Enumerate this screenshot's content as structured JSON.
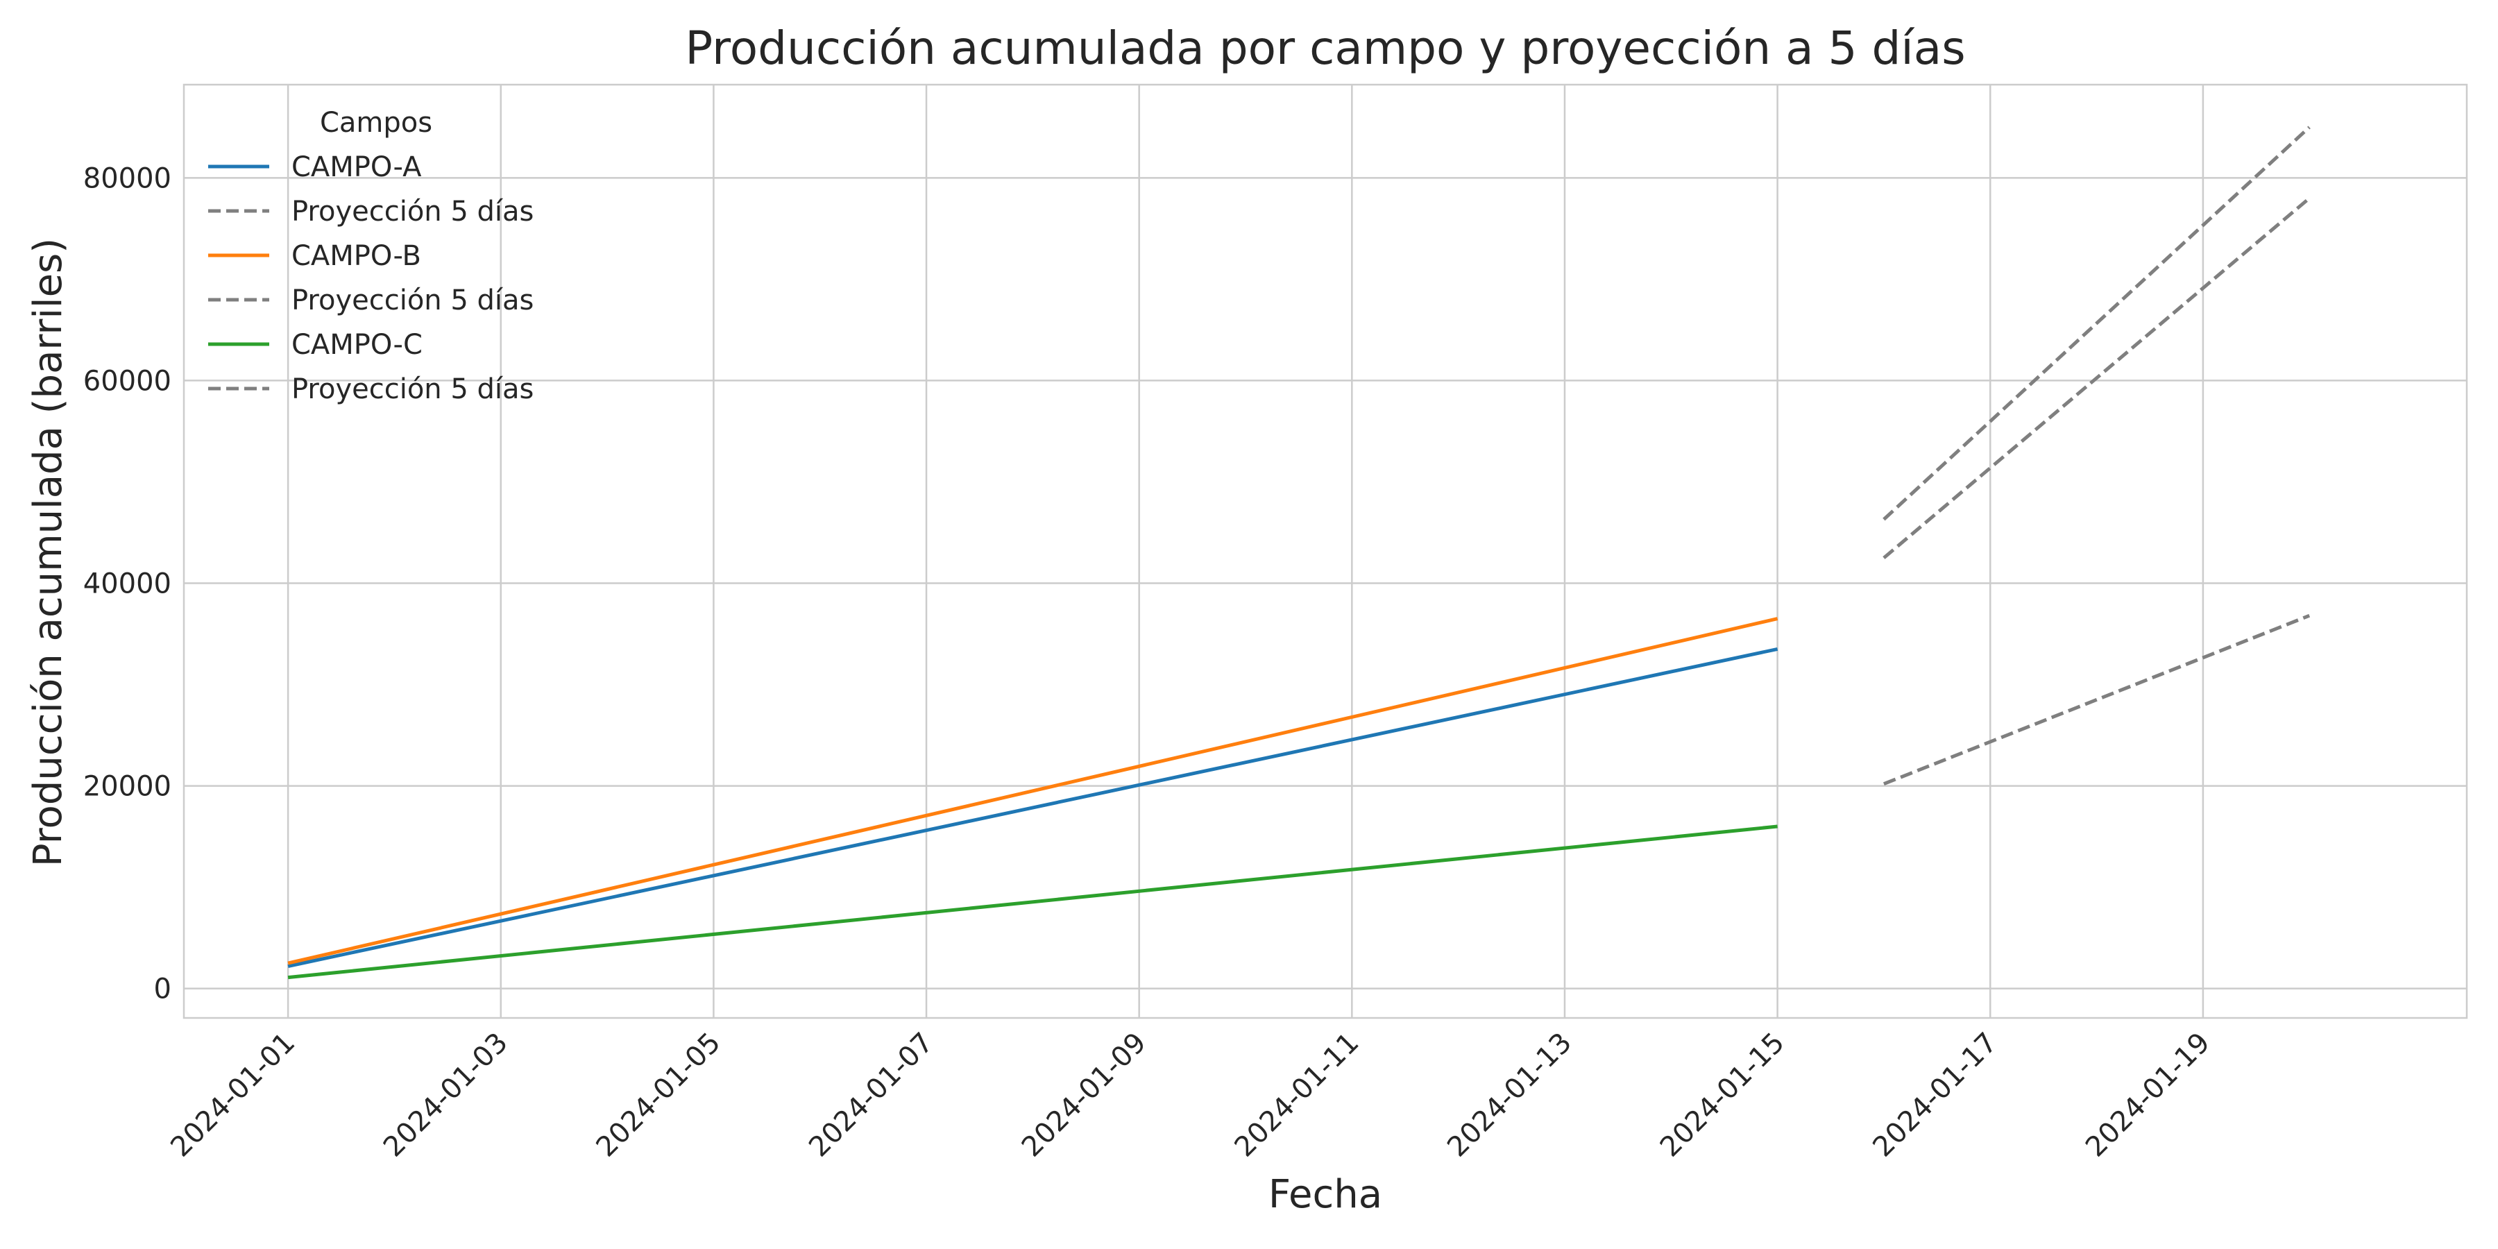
{
  "chart_data": {
    "type": "line",
    "title": "Producción acumulada por campo y proyección a 5 días",
    "xlabel": "Fecha",
    "ylabel": "Producción acumulada (barriles)",
    "x_tick_labels": [
      "2024-01-01",
      "2024-01-03",
      "2024-01-05",
      "2024-01-07",
      "2024-01-09",
      "2024-01-11",
      "2024-01-13",
      "2024-01-15",
      "2024-01-17",
      "2024-01-19"
    ],
    "y_ticks": [
      0,
      20000,
      40000,
      60000,
      80000
    ],
    "xlim": [
      "2023-12-31T00:30",
      "2024-01-21T11:30"
    ],
    "ylim": [
      -2900,
      89200
    ],
    "grid": true,
    "legend": {
      "title": "Campos",
      "placement": "top-left"
    },
    "series": [
      {
        "name": "CAMPO-A",
        "color": "#1f77b4",
        "style": "solid",
        "x": [
          "2024-01-01",
          "2024-01-15"
        ],
        "y": [
          2200,
          33500
        ]
      },
      {
        "name": "Proyección 5 días",
        "color": "#7f7f7f",
        "style": "dashed",
        "x": [
          "2024-01-16",
          "2024-01-20"
        ],
        "y": [
          42500,
          78000
        ]
      },
      {
        "name": "CAMPO-B",
        "color": "#ff7f0e",
        "style": "solid",
        "x": [
          "2024-01-01",
          "2024-01-15"
        ],
        "y": [
          2500,
          36500
        ]
      },
      {
        "name": "Proyección 5 días",
        "color": "#7f7f7f",
        "style": "dashed",
        "x": [
          "2024-01-16",
          "2024-01-20"
        ],
        "y": [
          46300,
          85000
        ]
      },
      {
        "name": "CAMPO-C",
        "color": "#2ca02c",
        "style": "solid",
        "x": [
          "2024-01-01",
          "2024-01-15"
        ],
        "y": [
          1100,
          16000
        ]
      },
      {
        "name": "Proyección 5 días",
        "color": "#7f7f7f",
        "style": "dashed",
        "x": [
          "2024-01-16",
          "2024-01-20"
        ],
        "y": [
          20200,
          36800
        ]
      }
    ]
  }
}
